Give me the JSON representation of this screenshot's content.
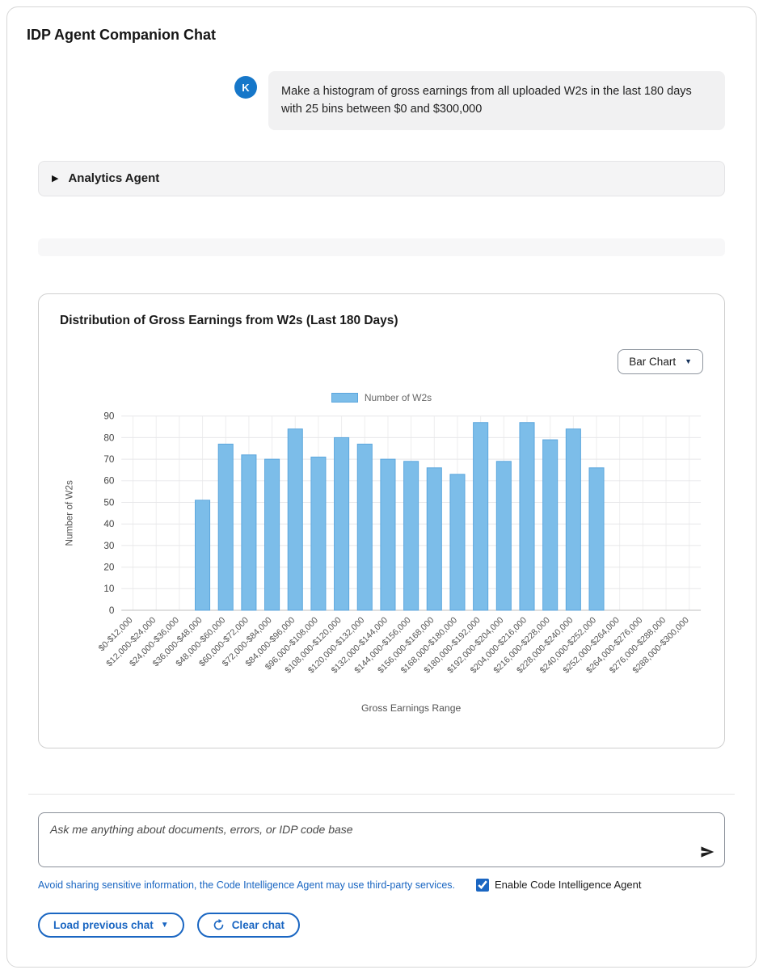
{
  "header": {
    "title": "IDP Agent Companion Chat"
  },
  "chat": {
    "avatar_initial": "K",
    "user_message": "Make a histogram of gross earnings from all uploaded W2s in the last 180 days with 25 bins between $0 and $300,000"
  },
  "agent_panel": {
    "label": "Analytics Agent",
    "expand_icon": "▶"
  },
  "chart_card": {
    "title": "Distribution of Gross Earnings from W2s (Last 180 Days)",
    "chart_type_selector": "Bar Chart",
    "caret": "▼"
  },
  "chart_data": {
    "type": "bar",
    "title": "Distribution of Gross Earnings from W2s (Last 180 Days)",
    "legend": "Number of W2s",
    "xlabel": "Gross Earnings Range",
    "ylabel": "Number of W2s",
    "ylim": [
      0,
      90
    ],
    "ytick_step": 10,
    "grid": true,
    "legend_position": "top-center",
    "bar_color": "#7cbde9",
    "bar_border": "#5ba6dd",
    "categories": [
      "$0-$12,000",
      "$12,000-$24,000",
      "$24,000-$36,000",
      "$36,000-$48,000",
      "$48,000-$60,000",
      "$60,000-$72,000",
      "$72,000-$84,000",
      "$84,000-$96,000",
      "$96,000-$108,000",
      "$108,000-$120,000",
      "$120,000-$132,000",
      "$132,000-$144,000",
      "$144,000-$156,000",
      "$156,000-$168,000",
      "$168,000-$180,000",
      "$180,000-$192,000",
      "$192,000-$204,000",
      "$204,000-$216,000",
      "$216,000-$228,000",
      "$228,000-$240,000",
      "$240,000-$252,000",
      "$252,000-$264,000",
      "$264,000-$276,000",
      "$276,000-$288,000",
      "$288,000-$300,000"
    ],
    "values": [
      0,
      0,
      0,
      51,
      77,
      72,
      70,
      84,
      71,
      80,
      77,
      70,
      69,
      66,
      63,
      87,
      69,
      87,
      79,
      84,
      66,
      0,
      0,
      0,
      0
    ]
  },
  "composer": {
    "placeholder": "Ask me anything about documents, errors, or IDP code base",
    "disclaimer": "Avoid sharing sensitive information, the Code Intelligence Agent may use third-party services.",
    "code_intel_label": "Enable Code Intelligence Agent",
    "code_intel_checked": true,
    "load_previous_label": "Load previous chat",
    "load_previous_caret": "▼",
    "clear_chat_label": "Clear chat"
  }
}
